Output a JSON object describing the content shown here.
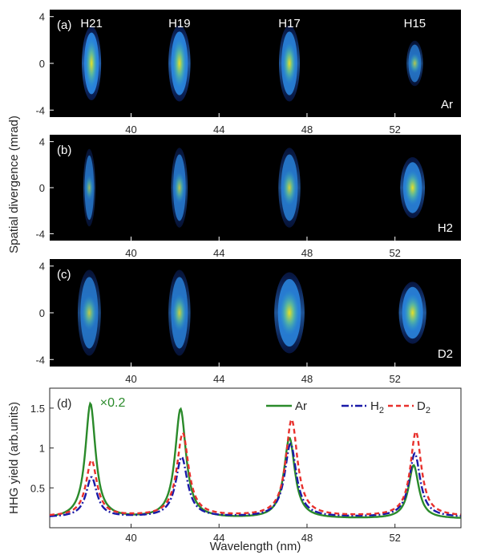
{
  "figure": {
    "shared_ylabel": "Spatial divergence (mrad)",
    "colors": {
      "background": "#ffffff",
      "panel_bg": "#000000",
      "panel_text": "#ffffff",
      "axis": "#262626",
      "ar": "#2a8a2a",
      "h2": "#1a1aa8",
      "d2": "#e8302c",
      "multiplier": "#2a8a2a"
    }
  },
  "chart_data": [
    {
      "type": "heatmap",
      "panel": "(a)",
      "gas_label": "Ar",
      "harmonic_labels": [
        "H21",
        "H19",
        "H17",
        "H15"
      ],
      "x_ticks": [
        "40",
        "44",
        "48",
        "52"
      ],
      "x_tick_values": [
        40,
        44,
        48,
        52
      ],
      "y_ticks": [
        "4",
        "0",
        "-4"
      ],
      "y_tick_values": [
        4,
        0,
        -4
      ],
      "xlim": [
        36.3,
        55.0
      ],
      "ylim": [
        -4.6,
        4.6
      ],
      "spots": [
        {
          "harmonic": "H21",
          "center_nm": 38.2,
          "half_width_nm": 0.35,
          "extent_mrad": 3.1,
          "intensity": 1.0
        },
        {
          "harmonic": "H19",
          "center_nm": 42.2,
          "half_width_nm": 0.4,
          "extent_mrad": 3.2,
          "intensity": 0.95
        },
        {
          "harmonic": "H17",
          "center_nm": 47.2,
          "half_width_nm": 0.38,
          "extent_mrad": 3.2,
          "intensity": 0.78
        },
        {
          "harmonic": "H15",
          "center_nm": 52.9,
          "half_width_nm": 0.3,
          "extent_mrad": 1.9,
          "intensity": 0.5
        }
      ]
    },
    {
      "type": "heatmap",
      "panel": "(b)",
      "gas_label": "H2",
      "harmonic_labels": [],
      "x_ticks": [
        "40",
        "44",
        "48",
        "52"
      ],
      "x_tick_values": [
        40,
        44,
        48,
        52
      ],
      "y_ticks": [
        "4",
        "0",
        "-4"
      ],
      "y_tick_values": [
        4,
        0,
        -4
      ],
      "xlim": [
        36.3,
        55.0
      ],
      "ylim": [
        -4.6,
        4.6
      ],
      "spots": [
        {
          "harmonic": "H21",
          "center_nm": 38.1,
          "half_width_nm": 0.22,
          "extent_mrad": 3.3,
          "intensity": 0.4
        },
        {
          "harmonic": "H19",
          "center_nm": 42.2,
          "half_width_nm": 0.3,
          "extent_mrad": 3.4,
          "intensity": 0.52
        },
        {
          "harmonic": "H17",
          "center_nm": 47.2,
          "half_width_nm": 0.4,
          "extent_mrad": 3.4,
          "intensity": 0.62
        },
        {
          "harmonic": "H15",
          "center_nm": 52.8,
          "half_width_nm": 0.45,
          "extent_mrad": 2.6,
          "intensity": 0.78
        }
      ]
    },
    {
      "type": "heatmap",
      "panel": "(c)",
      "gas_label": "D2",
      "harmonic_labels": [],
      "x_ticks": [
        "40",
        "44",
        "48",
        "52"
      ],
      "x_tick_values": [
        40,
        44,
        48,
        52
      ],
      "y_ticks": [
        "4",
        "0",
        "-4"
      ],
      "y_tick_values": [
        4,
        0,
        -4
      ],
      "xlim": [
        36.3,
        55.0
      ],
      "ylim": [
        -4.6,
        4.6
      ],
      "spots": [
        {
          "harmonic": "H21",
          "center_nm": 38.1,
          "half_width_nm": 0.42,
          "extent_mrad": 3.6,
          "intensity": 0.55
        },
        {
          "harmonic": "H19",
          "center_nm": 42.2,
          "half_width_nm": 0.4,
          "extent_mrad": 3.6,
          "intensity": 0.6
        },
        {
          "harmonic": "H17",
          "center_nm": 47.2,
          "half_width_nm": 0.55,
          "extent_mrad": 3.4,
          "intensity": 0.8
        },
        {
          "harmonic": "H15",
          "center_nm": 52.8,
          "half_width_nm": 0.5,
          "extent_mrad": 2.6,
          "intensity": 0.85
        }
      ]
    },
    {
      "type": "line",
      "panel": "(d)",
      "xlabel": "Wavelength (nm)",
      "ylabel": "HHG yield (arb.units)",
      "x_ticks": [
        "40",
        "44",
        "48",
        "52"
      ],
      "x_tick_values": [
        40,
        44,
        48,
        52
      ],
      "y_ticks": [
        "1.5",
        "1",
        "0.5"
      ],
      "y_tick_values": [
        1.5,
        1.0,
        0.5
      ],
      "xlim": [
        36.3,
        55.0
      ],
      "ylim": [
        0.0,
        1.75
      ],
      "annotation": "×0.2",
      "legend": {
        "position": "top-right",
        "entries": [
          {
            "label": "Ar"
          },
          {
            "label": "H",
            "subscript": "2"
          },
          {
            "label": "D",
            "subscript": "2"
          }
        ]
      },
      "series": [
        {
          "name": "Ar",
          "style": "solid",
          "baseline": 0.11,
          "peaks": [
            {
              "x": 38.15,
              "y": 1.55,
              "w": 0.28
            },
            {
              "x": 42.25,
              "y": 1.48,
              "w": 0.3
            },
            {
              "x": 47.2,
              "y": 1.12,
              "w": 0.3
            },
            {
              "x": 52.85,
              "y": 0.78,
              "w": 0.28
            }
          ]
        },
        {
          "name": "H2",
          "style": "dashdot",
          "baseline": 0.13,
          "peaks": [
            {
              "x": 38.2,
              "y": 0.63,
              "w": 0.3
            },
            {
              "x": 42.3,
              "y": 0.88,
              "w": 0.32
            },
            {
              "x": 47.25,
              "y": 1.05,
              "w": 0.32
            },
            {
              "x": 52.9,
              "y": 0.93,
              "w": 0.3
            }
          ]
        },
        {
          "name": "D2",
          "style": "dashed",
          "baseline": 0.14,
          "peaks": [
            {
              "x": 38.2,
              "y": 0.84,
              "w": 0.3
            },
            {
              "x": 42.35,
              "y": 1.18,
              "w": 0.32
            },
            {
              "x": 47.3,
              "y": 1.35,
              "w": 0.32
            },
            {
              "x": 52.95,
              "y": 1.2,
              "w": 0.3
            }
          ]
        }
      ]
    }
  ]
}
